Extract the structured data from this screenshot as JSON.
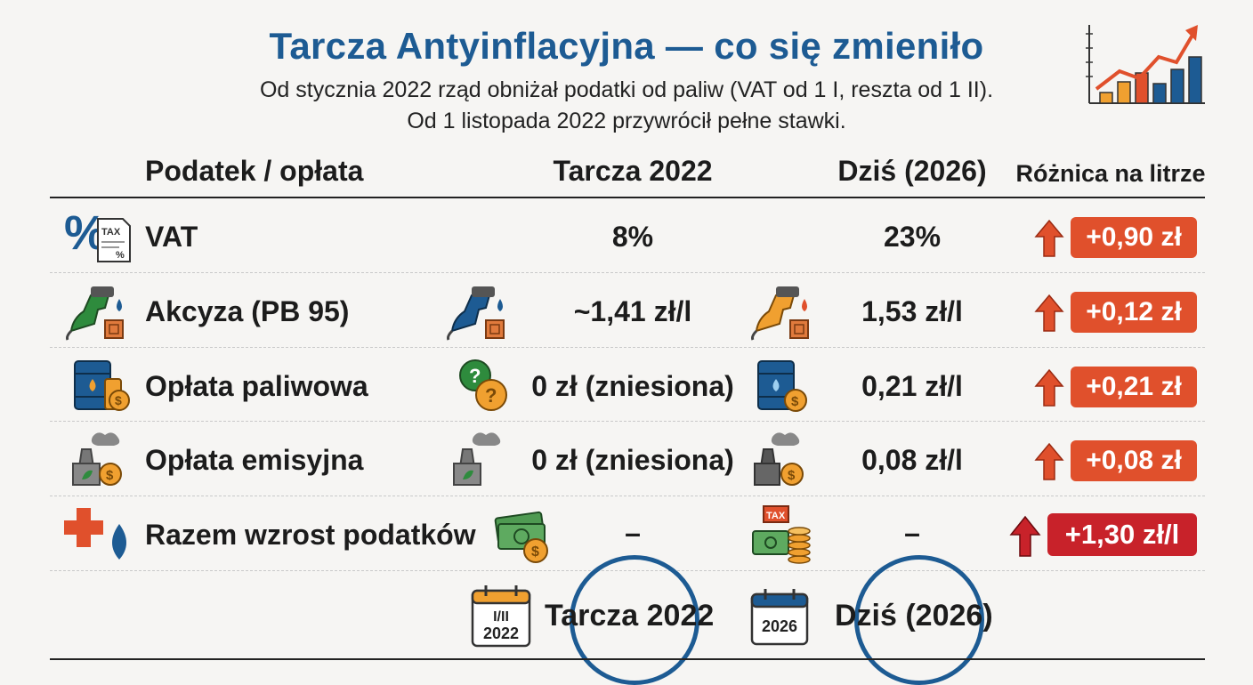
{
  "header": {
    "title": "Tarcza Antyinflacyjna — co się zmieniło",
    "subtitle_line1": "Od stycznia 2022 rząd obniżał podatki od paliw (VAT od 1 I, reszta od 1 II).",
    "subtitle_line2": "Od 1 listopada 2022 przywrócił pełne stawki."
  },
  "columns": {
    "tax": "Podatek / opłata",
    "shield": "Tarcza 2022",
    "today": "Dziś (2026)",
    "diff": "Różnica na litrze"
  },
  "rows": [
    {
      "label": "VAT",
      "shield": "8%",
      "today": "23%",
      "diff": "+0,90 zł",
      "icon": "percent-tax-document-icon"
    },
    {
      "label": "Akcyza (PB 95)",
      "shield": "~1,41 zł/l",
      "today": "1,53 zł/l",
      "diff": "+0,12 zł",
      "icon": "fuel-nozzle-icon"
    },
    {
      "label": "Opłata paliwowa",
      "shield": "0 zł (zniesiona)",
      "today": "0,21 zł/l",
      "diff": "+0,21 zł",
      "icon": "oil-barrel-icon"
    },
    {
      "label": "Opłata emisyjna",
      "shield": "0 zł (zniesiona)",
      "today": "0,08 zł/l",
      "diff": "+0,08 zł",
      "icon": "factory-emission-icon"
    },
    {
      "label": "Razem wzrost podatków",
      "shield": "–",
      "today": "–",
      "diff": "+1,30 zł/l",
      "icon": "plus-drop-icon"
    }
  ],
  "footer": {
    "cal_shield": "I/II",
    "cal_shield_year": "2022",
    "cal_today_year": "2026",
    "shield_label": "Tarcza 2022",
    "today_label": "Dziś (2026)"
  },
  "icon_text": {
    "tax_doc_top": "TAX",
    "tax_doc_bottom": "%",
    "tax_box": "TAX"
  },
  "colors": {
    "title": "#1d5b93",
    "badge": "#e0502c",
    "badge_total": "#c8222a",
    "arrow": "#e0502c"
  }
}
